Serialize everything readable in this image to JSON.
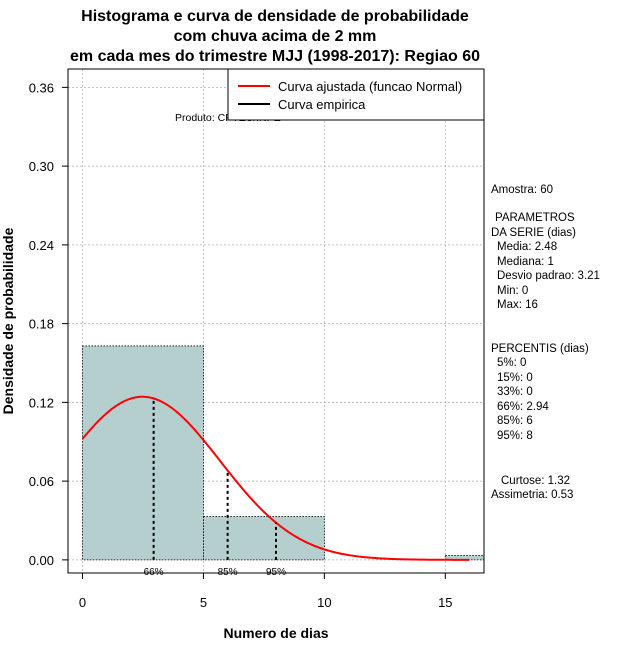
{
  "chart_data": {
    "type": "bar",
    "title_lines": [
      "Histograma e curva de densidade de probabilidade",
      "com chuva acima de 2 mm",
      "em cada mes do trimestre MJJ (1998-2017): Regiao 60"
    ],
    "xlabel": "Numero de dias",
    "ylabel": "Densidade de probabilidade",
    "xlim": [
      -0.6,
      16.6
    ],
    "ylim": [
      -0.01,
      0.374
    ],
    "x_ticks": [
      0,
      5,
      10,
      15
    ],
    "y_ticks": [
      0.0,
      0.06,
      0.12,
      0.18,
      0.24,
      0.3,
      0.36
    ],
    "y_tick_labels": [
      "0.00",
      "0.06",
      "0.12",
      "0.18",
      "0.24",
      "0.30",
      "0.36"
    ],
    "grid": true,
    "bins": [
      {
        "from": 0,
        "to": 5,
        "density": 0.163
      },
      {
        "from": 5,
        "to": 10,
        "density": 0.033
      },
      {
        "from": 15,
        "to": 20,
        "density": 0.0033
      }
    ],
    "fitted_curve": {
      "name": "Curva ajustada (funcao Normal)",
      "mean": 2.48,
      "sd": 3.21,
      "color": "#ff0000"
    },
    "empirical_curve": {
      "name": "Curva empirica",
      "color": "#000000"
    },
    "legend_position": "top-right",
    "product_label": "Produto: CPTEC/INPE",
    "percentile_markers": [
      {
        "x": 2.94,
        "label": "66%"
      },
      {
        "x": 6,
        "label": "85%"
      },
      {
        "x": 8,
        "label": "95%"
      }
    ],
    "bar_color": "#b5cece"
  },
  "stats": {
    "amostra": "Amostra: 60",
    "param_title_1": "PARAMETROS",
    "param_title_2": "DA SERIE (dias)",
    "params": [
      "Media: 2.48",
      "Mediana: 1",
      "Desvio padrao: 3.21",
      "Min: 0",
      "Max: 16"
    ],
    "perc_title": "PERCENTIS (dias)",
    "percentis": [
      "5%: 0",
      "15%: 0",
      "33%: 0",
      "66%: 2.94",
      "85%: 6",
      "95%: 8"
    ],
    "curtose": "Curtose: 1.32",
    "assimetria": "Assimetria: 0.53"
  }
}
